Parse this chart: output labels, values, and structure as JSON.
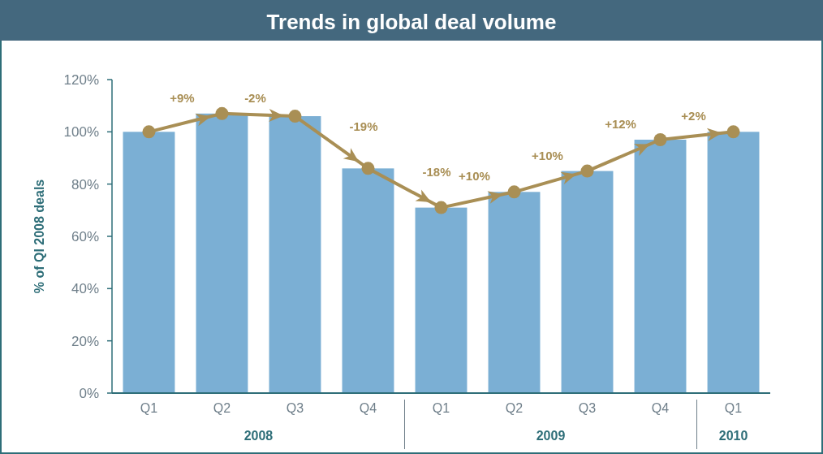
{
  "chart_data": {
    "type": "bar",
    "title": "Trends in global deal volume",
    "ylabel": "% of QI 2008 deals",
    "categories": [
      "Q1",
      "Q2",
      "Q3",
      "Q4",
      "Q1",
      "Q2",
      "Q3",
      "Q4",
      "Q1"
    ],
    "series": [
      {
        "color": "#7bafd4",
        "values": [
          100,
          107,
          106,
          86,
          71,
          77,
          85,
          97,
          100
        ]
      },
      {
        "type": "line",
        "color": "#a98f55",
        "marker": "circle",
        "values": [
          100,
          107,
          106,
          86,
          71,
          77,
          85,
          97,
          100
        ]
      }
    ],
    "ylim": [
      0,
      120
    ],
    "yticks": [
      {
        "value": 0,
        "label": "0%"
      },
      {
        "value": 20,
        "label": "20%"
      },
      {
        "value": 40,
        "label": "40%"
      },
      {
        "value": 60,
        "label": "60%"
      },
      {
        "value": 80,
        "label": "80%"
      },
      {
        "value": 100,
        "label": "100%"
      },
      {
        "value": 120,
        "label": "120%"
      }
    ],
    "grid": false,
    "annotations": [
      "+9%",
      "-2%",
      "-19%",
      "-18%",
      "+10%",
      "+10%",
      "+12%",
      "+2%",
      "2008",
      "2009",
      "2010"
    ]
  }
}
